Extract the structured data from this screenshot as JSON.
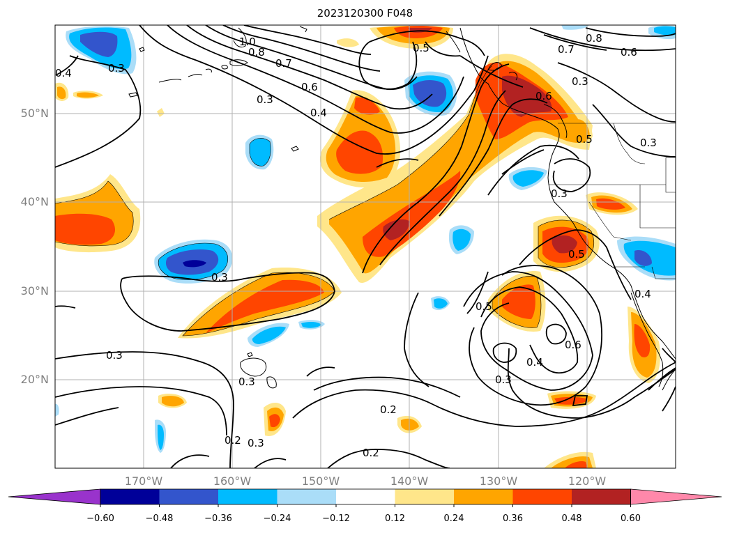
{
  "title": "2023120300 F048",
  "lat_labels": [
    "50°N",
    "40°N",
    "30°N",
    "20°N"
  ],
  "lon_labels": [
    "170°W",
    "160°W",
    "150°W",
    "140°W",
    "130°W",
    "120°W"
  ],
  "colorbar": {
    "ticks": [
      "−0.60",
      "−0.48",
      "−0.36",
      "−0.24",
      "−0.12",
      "0.12",
      "0.24",
      "0.36",
      "0.48",
      "0.60"
    ],
    "colors": [
      "#9933cc",
      "#000099",
      "#3355cc",
      "#00bbff",
      "#aaddf8",
      "#ffffff",
      "#ffe68a",
      "#ffa500",
      "#ff4500",
      "#b22222",
      "#ff88aa"
    ]
  },
  "contour_labels": {
    "l1": "1.0",
    "l2": "0.8",
    "l3": "0.7",
    "l4": "0.6",
    "l5": "0.4",
    "l6": "0.3",
    "l7": "0.5",
    "l8": "0.7",
    "l9": "0.8",
    "l10": "0.6",
    "l11": "0.6",
    "l12": "0.5",
    "l13": "0.3",
    "l14": "0.3",
    "l15": "0.3",
    "l16": "0.3",
    "l17": "0.5",
    "l18": "0.6",
    "l19": "0.4",
    "l20": "0.3",
    "l21": "0.2",
    "l22": "0.2",
    "l23": "0.2",
    "l24": "0.3",
    "l25": "0.3",
    "l26": "0.4",
    "l27": "0.3",
    "l28": "0.4",
    "l29": "0.3",
    "l30": "0.5"
  }
}
